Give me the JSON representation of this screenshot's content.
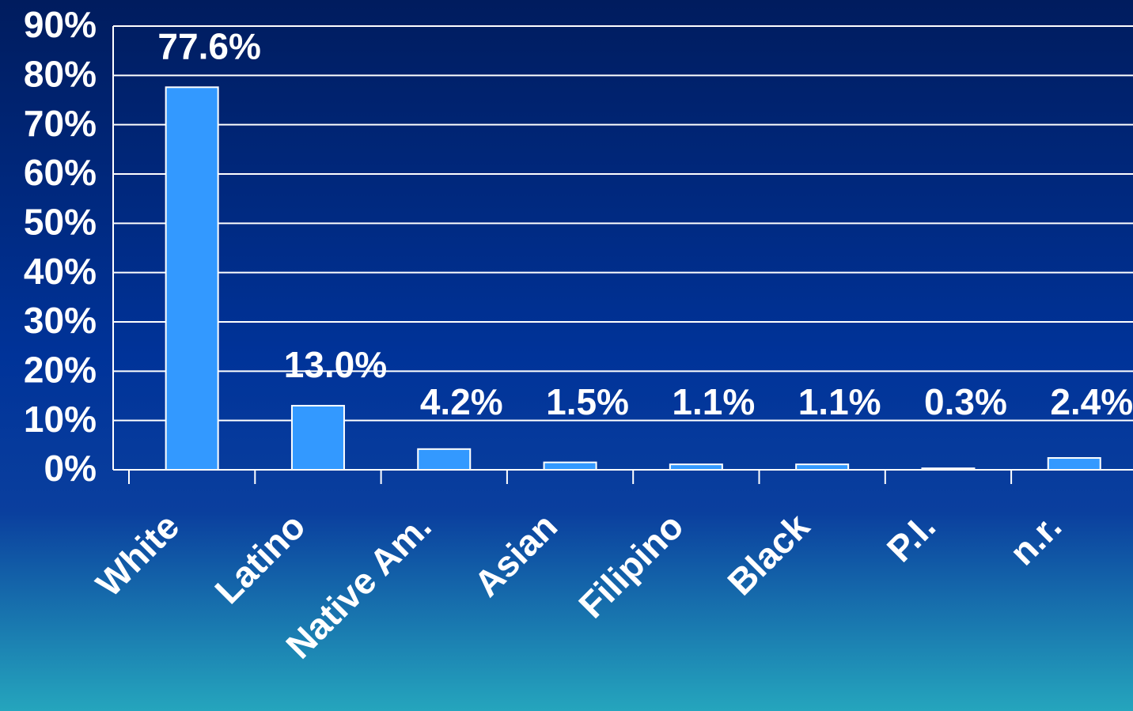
{
  "chart_data": {
    "type": "bar",
    "categories": [
      "White",
      "Latino",
      "Native Am.",
      "Asian",
      "Filipino",
      "Black",
      "P.I.",
      "n.r."
    ],
    "values": [
      77.6,
      13.0,
      4.2,
      1.5,
      1.1,
      1.1,
      0.3,
      2.4
    ],
    "value_labels": [
      "77.6%",
      "13.0%",
      "4.2%",
      "1.5%",
      "1.1%",
      "1.1%",
      "0.3%",
      "2.4%"
    ],
    "color": "#3399ff",
    "ylim": [
      0,
      90
    ],
    "yticks": [
      {
        "value": 0,
        "label": "0%"
      },
      {
        "value": 10,
        "label": "10%"
      },
      {
        "value": 20,
        "label": "20%"
      },
      {
        "value": 30,
        "label": "30%"
      },
      {
        "value": 40,
        "label": "40%"
      },
      {
        "value": 50,
        "label": "50%"
      },
      {
        "value": 60,
        "label": "60%"
      },
      {
        "value": 70,
        "label": "70%"
      },
      {
        "value": 80,
        "label": "80%"
      },
      {
        "value": 90,
        "label": "90%"
      }
    ],
    "grid": true
  }
}
